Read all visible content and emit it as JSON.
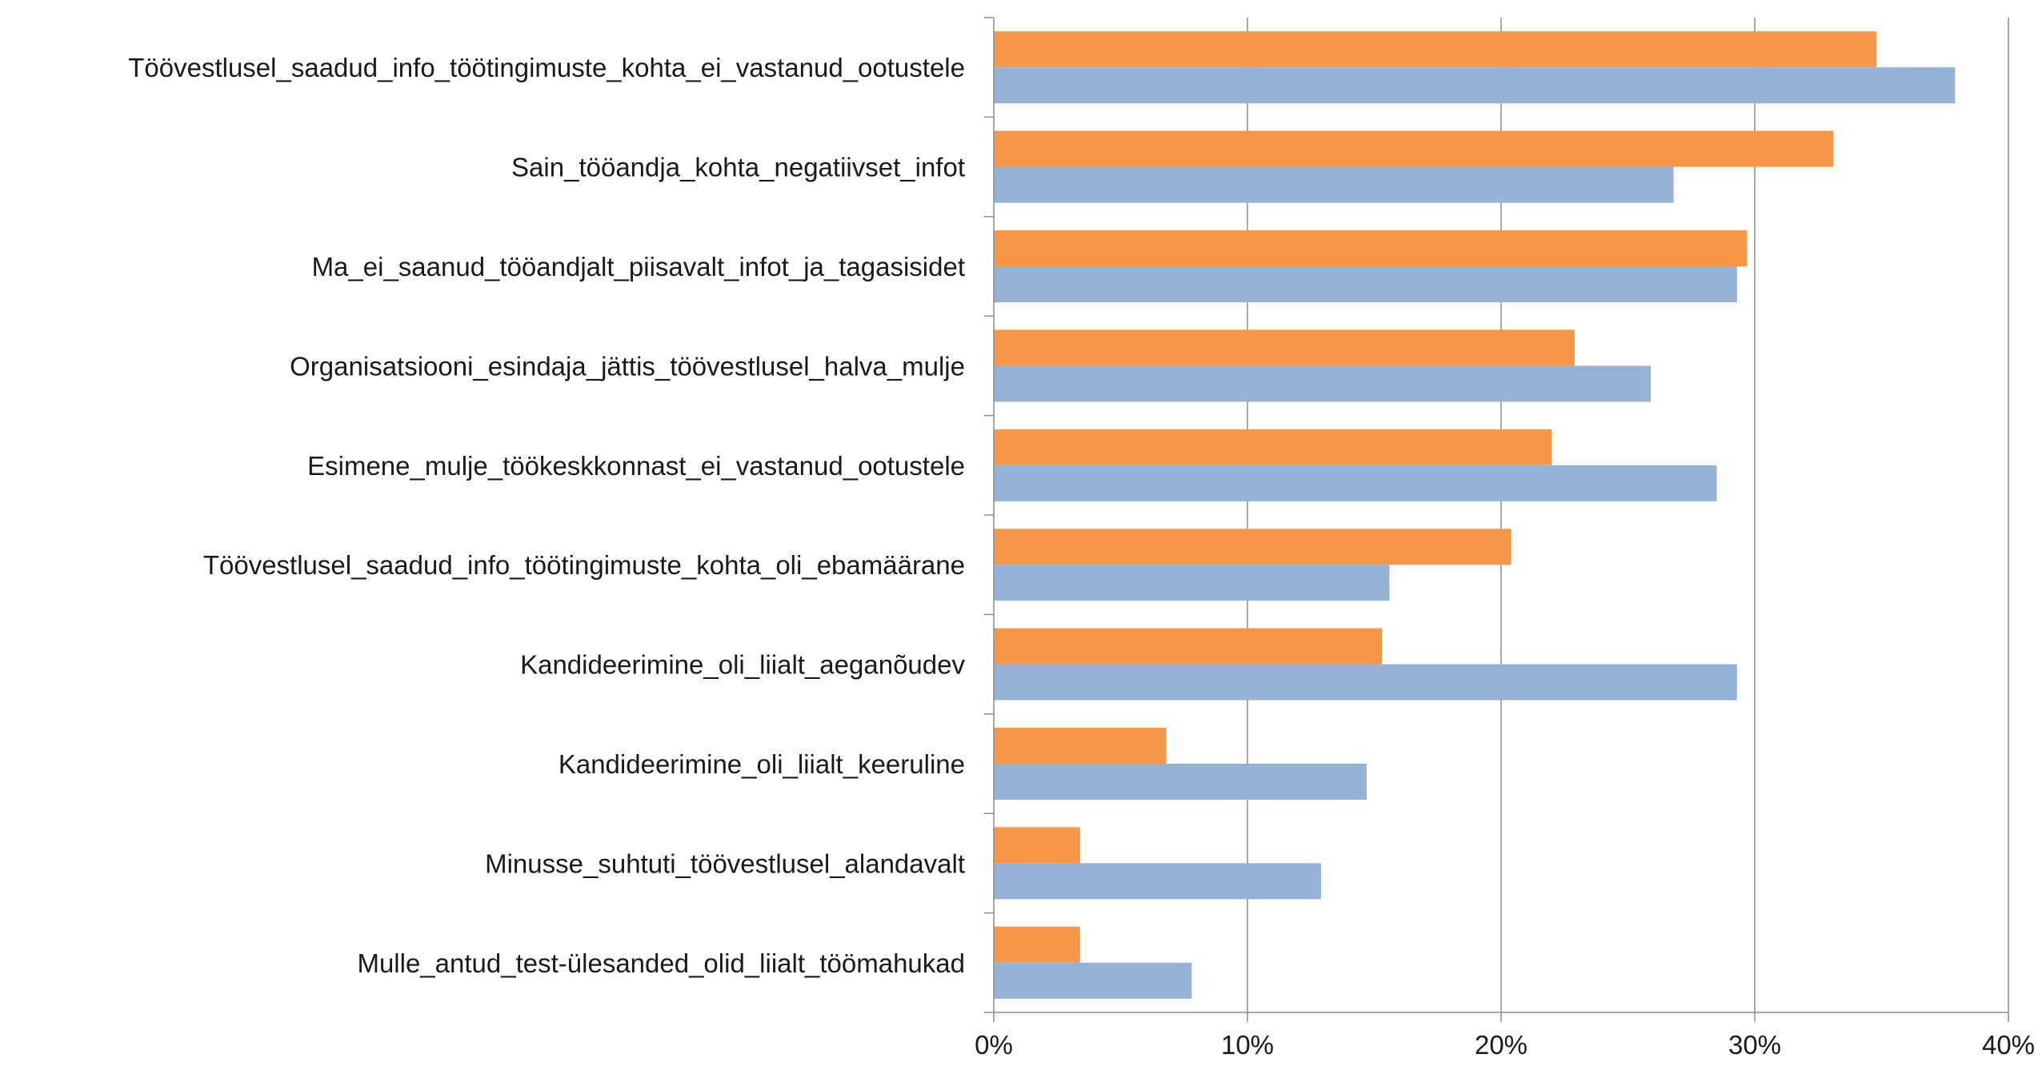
{
  "chart_data": {
    "type": "bar",
    "orientation": "horizontal",
    "title": "",
    "xlabel": "",
    "ylabel": "",
    "xlim": [
      0,
      40
    ],
    "x_ticks": [
      "0%",
      "10%",
      "20%",
      "30%",
      "40%"
    ],
    "x_tick_values": [
      0,
      10,
      20,
      30,
      40
    ],
    "grid": "vertical",
    "legend": "none",
    "categories": [
      "Töövestlusel_saadud_info_töötingimuste_kohta_ei_vastanud_ootustele",
      "Sain_tööandja_kohta_negatiivset_infot",
      "Ma_ei_saanud_tööandjalt_piisavalt_infot_ja_tagasisidet",
      "Organisatsiooni_esindaja_jättis_töövestlusel_halva_mulje",
      "Esimene_mulje_töökeskkonnast_ei_vastanud_ootustele",
      "Töövestlusel_saadud_info_töötingimuste_kohta_oli_ebamäärane",
      "Kandideerimine_oli_liialt_aeganõudev",
      "Kandideerimine_oli_liialt_keeruline",
      "Minusse_suhtuti_töövestlusel_alandavalt",
      "Mulle_antud_test-ülesanded_olid_liialt_töömahukad"
    ],
    "series": [
      {
        "color": "#f79646",
        "values": [
          34.8,
          33.1,
          29.7,
          22.9,
          22.0,
          20.4,
          15.3,
          6.8,
          3.4,
          3.4
        ]
      },
      {
        "color": "#95b3d7",
        "values": [
          37.9,
          26.8,
          29.3,
          25.9,
          28.5,
          15.6,
          29.3,
          14.7,
          12.9,
          7.8
        ]
      }
    ]
  }
}
